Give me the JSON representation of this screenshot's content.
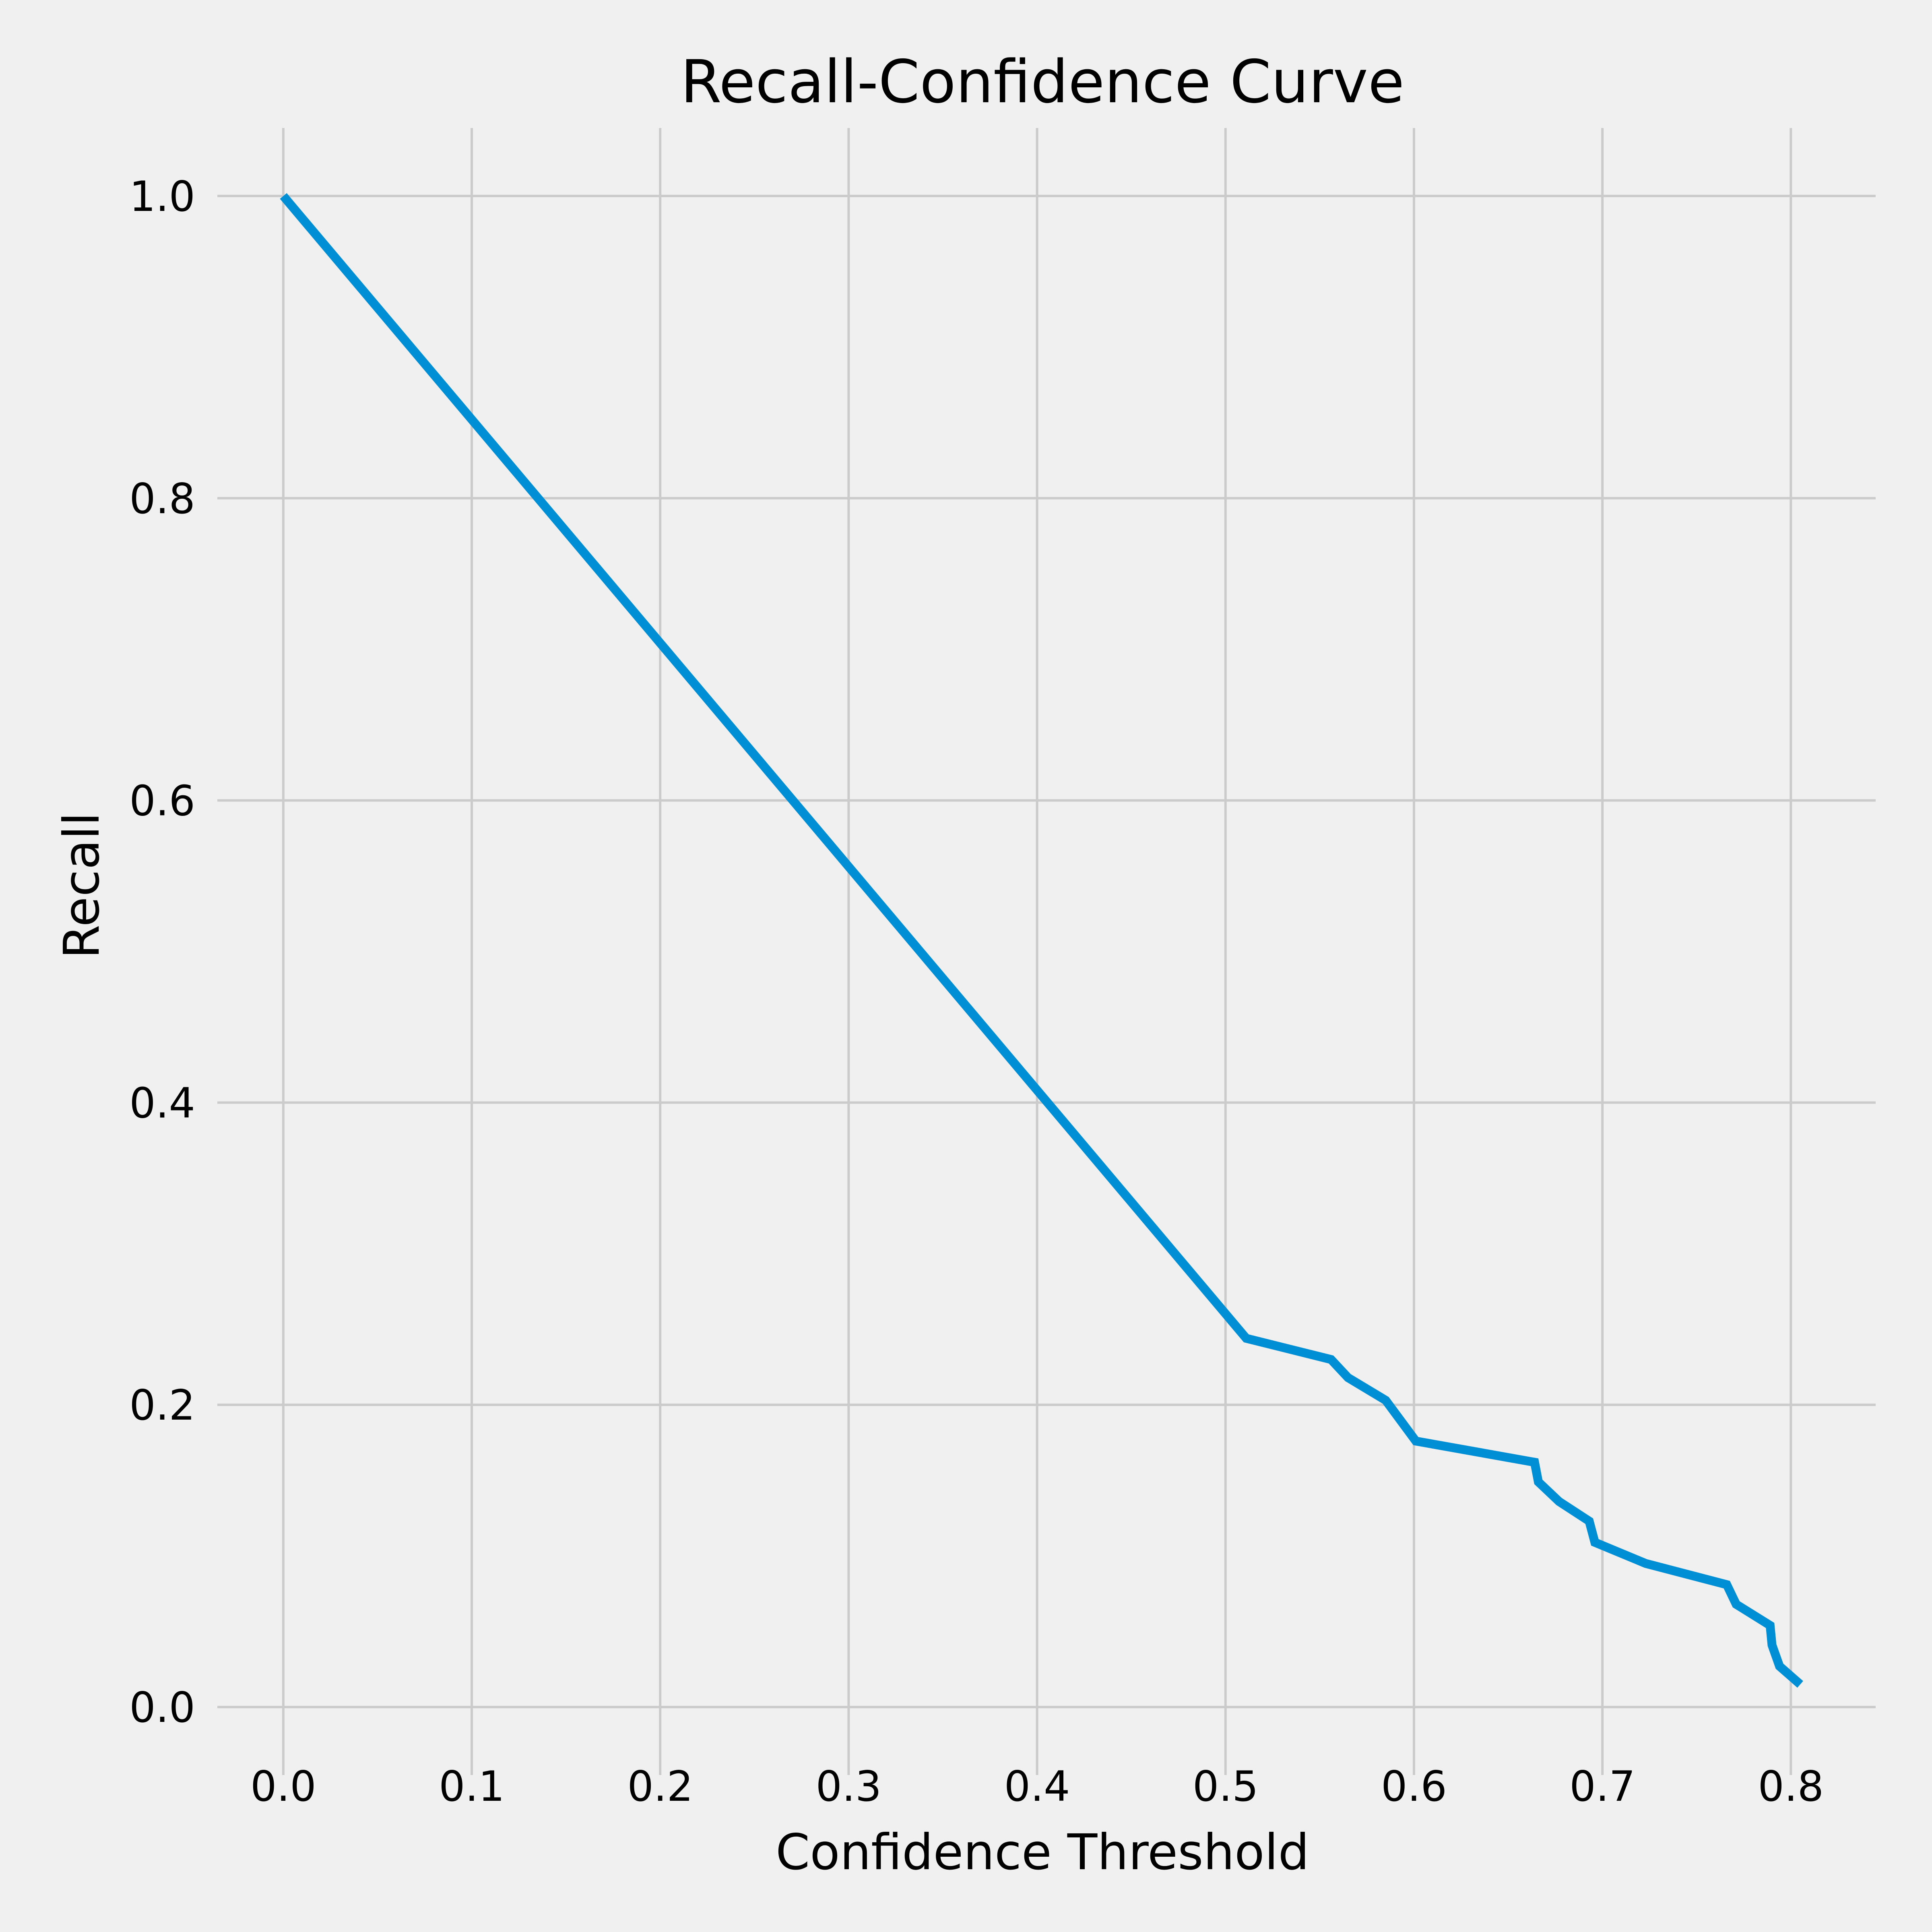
{
  "chart_data": {
    "type": "line",
    "title": "Recall-Confidence Curve",
    "xlabel": "Confidence Threshold",
    "ylabel": "Recall",
    "xlim": [
      -0.035,
      0.845
    ],
    "ylim": [
      -0.045,
      1.045
    ],
    "xticks": [
      0.0,
      0.1,
      0.2,
      0.3,
      0.4,
      0.5,
      0.6,
      0.7,
      0.8
    ],
    "yticks": [
      0.0,
      0.2,
      0.4,
      0.6,
      0.8,
      1.0
    ],
    "xtick_labels": [
      "0.0",
      "0.1",
      "0.2",
      "0.3",
      "0.4",
      "0.5",
      "0.6",
      "0.7",
      "0.8"
    ],
    "ytick_labels": [
      "0.0",
      "0.2",
      "0.4",
      "0.6",
      "0.8",
      "1.0"
    ],
    "grid": true,
    "background_color": "#f0f0f0",
    "grid_color": "#cbcbcb",
    "series": [
      {
        "color": "#008fd5",
        "x": [
          0.0,
          0.511,
          0.556,
          0.565,
          0.585,
          0.601,
          0.664,
          0.666,
          0.677,
          0.693,
          0.696,
          0.723,
          0.766,
          0.771,
          0.789,
          0.79,
          0.794,
          0.805
        ],
        "y": [
          1.0,
          0.244,
          0.23,
          0.218,
          0.203,
          0.176,
          0.162,
          0.149,
          0.136,
          0.123,
          0.109,
          0.095,
          0.081,
          0.068,
          0.054,
          0.041,
          0.027,
          0.015
        ]
      }
    ]
  }
}
